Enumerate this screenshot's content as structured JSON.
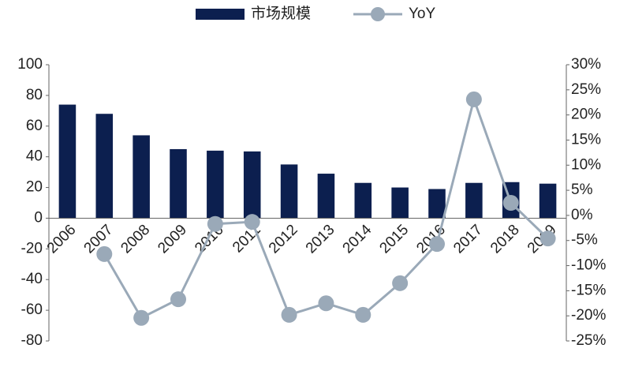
{
  "chart_data": {
    "type": "bar-line",
    "categories": [
      "2006",
      "2007",
      "2008",
      "2009",
      "2010",
      "2011",
      "2012",
      "2013",
      "2014",
      "2015",
      "2016",
      "2017",
      "2018",
      "2019"
    ],
    "series": [
      {
        "name": "市场规模",
        "type": "bar",
        "color": "#0c1f4f",
        "values": [
          74,
          68,
          54,
          45,
          44,
          43.5,
          35,
          29,
          23,
          20,
          19,
          23,
          23.5,
          22.5
        ]
      },
      {
        "name": "YoY",
        "type": "line",
        "axis": "y2",
        "color": "#9aa9b8",
        "values": [
          null,
          -7.7,
          -20.4,
          -16.7,
          -1.7,
          -1.3,
          -19.8,
          -17.5,
          -19.8,
          -13.5,
          -5.7,
          23.1,
          2.5,
          -4.6
        ]
      }
    ],
    "ylim": [
      -80,
      100
    ],
    "yticks": [
      -80,
      -60,
      -40,
      -20,
      0,
      20,
      40,
      60,
      80,
      100
    ],
    "y2lim": [
      -25,
      30
    ],
    "y2ticks": [
      {
        "value": -25,
        "label": "-25%"
      },
      {
        "value": -20,
        "label": "-20%"
      },
      {
        "value": -15,
        "label": "-15%"
      },
      {
        "value": -10,
        "label": "-10%"
      },
      {
        "value": -5,
        "label": "-5%"
      },
      {
        "value": 0,
        "label": "0%"
      },
      {
        "value": 5,
        "label": "5%"
      },
      {
        "value": 10,
        "label": "10%"
      },
      {
        "value": 15,
        "label": "15%"
      },
      {
        "value": 20,
        "label": "20%"
      },
      {
        "value": 25,
        "label": "25%"
      },
      {
        "value": 30,
        "label": "30%"
      }
    ],
    "legend": "top"
  }
}
